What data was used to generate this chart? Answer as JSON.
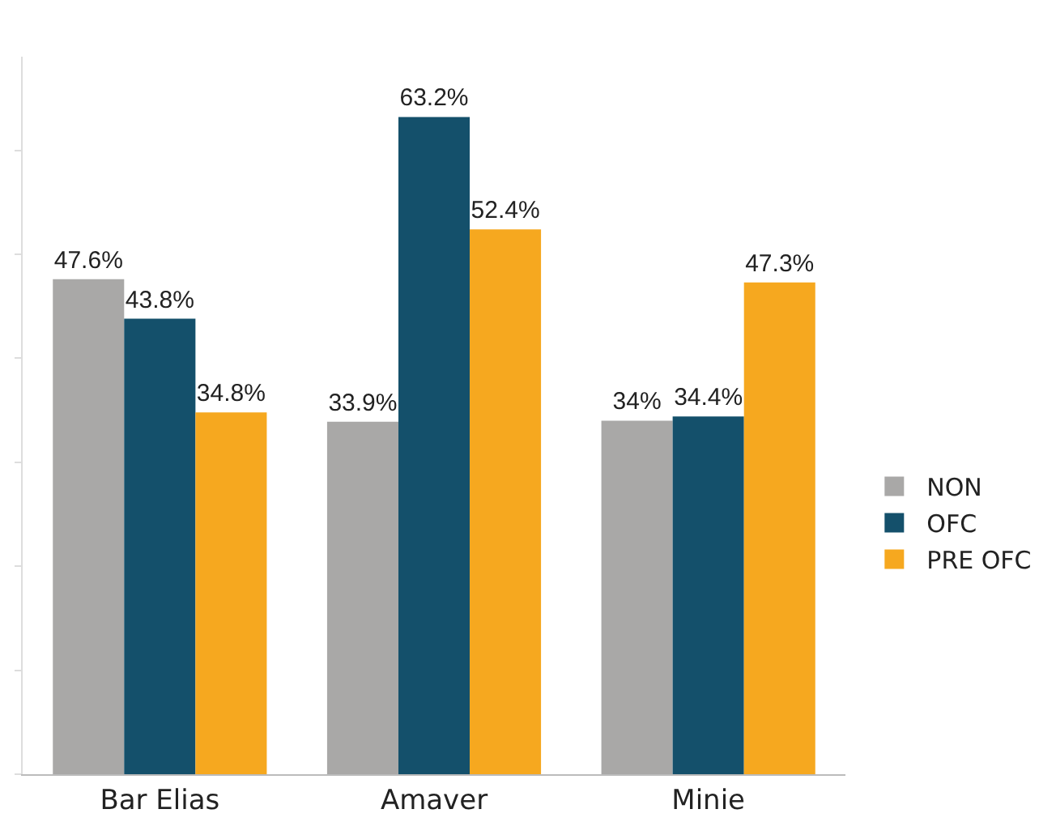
{
  "chart_data": {
    "type": "bar",
    "categories": [
      "Bar Elias",
      "Amaver",
      "Minie"
    ],
    "series": [
      {
        "name": "NON",
        "color": "#a9a8a7",
        "values": [
          47.6,
          33.9,
          34
        ],
        "value_labels": [
          "47.6%",
          "33.9%",
          "34%"
        ]
      },
      {
        "name": "OFC",
        "color": "#14506b",
        "values": [
          43.8,
          63.2,
          34.4
        ],
        "value_labels": [
          "43.8%",
          "63.2%",
          "34.4%"
        ]
      },
      {
        "name": "PRE OFC",
        "color": "#f6a81f",
        "values": [
          34.8,
          52.4,
          47.3
        ],
        "value_labels": [
          "34.8%",
          "52.4%",
          "47.3%"
        ]
      }
    ],
    "ylim": [
      0,
      69
    ],
    "yticks": [
      {
        "value": 0,
        "label": null
      },
      {
        "value": 10,
        "label": null
      },
      {
        "value": 20,
        "label": null
      },
      {
        "value": 30,
        "label": null
      },
      {
        "value": 40,
        "label": null
      },
      {
        "value": 50,
        "label": null
      },
      {
        "value": 60,
        "label": null
      }
    ],
    "tick_labels": "x",
    "legend": "right"
  }
}
